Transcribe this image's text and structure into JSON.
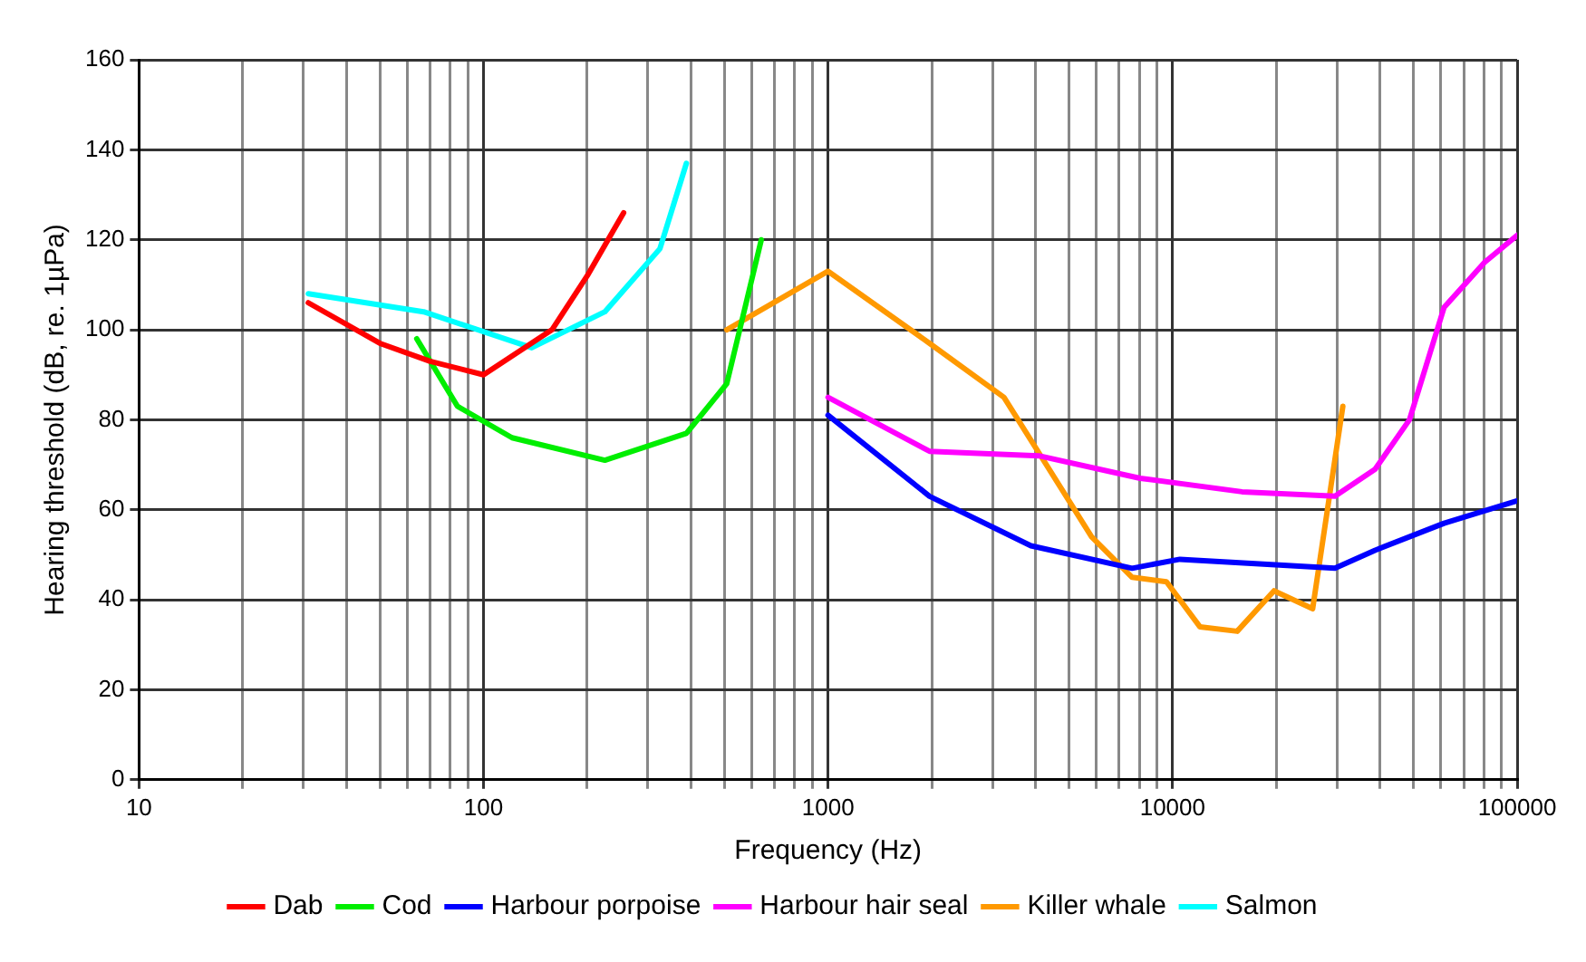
{
  "chart_data": {
    "type": "line",
    "xlabel": "Frequency (Hz)",
    "ylabel": "Hearing threshold (dB, re. 1µPa)",
    "log": "x",
    "xlim": [
      10,
      100000
    ],
    "ylim": [
      0,
      160
    ],
    "xticks": [
      10,
      {
        "value": 20,
        "label": null
      },
      {
        "value": 30,
        "label": null
      },
      {
        "value": 40,
        "label": null
      },
      {
        "value": 50,
        "label": null
      },
      {
        "value": 60,
        "label": null
      },
      {
        "value": 70,
        "label": null
      },
      {
        "value": 80,
        "label": null
      },
      {
        "value": 90,
        "label": null
      },
      100,
      {
        "value": 200,
        "label": null
      },
      {
        "value": 300,
        "label": null
      },
      {
        "value": 400,
        "label": null
      },
      {
        "value": 500,
        "label": null
      },
      {
        "value": 600,
        "label": null
      },
      {
        "value": 700,
        "label": null
      },
      {
        "value": 800,
        "label": null
      },
      {
        "value": 900,
        "label": null
      },
      1000,
      {
        "value": 2000,
        "label": null
      },
      {
        "value": 3000,
        "label": null
      },
      {
        "value": 4000,
        "label": null
      },
      {
        "value": 5000,
        "label": null
      },
      {
        "value": 6000,
        "label": null
      },
      {
        "value": 7000,
        "label": null
      },
      {
        "value": 8000,
        "label": null
      },
      {
        "value": 9000,
        "label": null
      },
      10000,
      {
        "value": 20000,
        "label": null
      },
      {
        "value": 30000,
        "label": null
      },
      {
        "value": 40000,
        "label": null
      },
      {
        "value": 50000,
        "label": null
      },
      {
        "value": 60000,
        "label": null
      },
      {
        "value": 70000,
        "label": null
      },
      {
        "value": 80000,
        "label": null
      },
      {
        "value": 90000,
        "label": null
      },
      100000
    ],
    "yticks": [
      0,
      20,
      40,
      60,
      80,
      100,
      120,
      140,
      160
    ],
    "grid": true,
    "legend": "bottom",
    "marker": "none",
    "line_style": "solid",
    "series": [
      {
        "name": "Dab",
        "color": "#ff0000",
        "x": [
          31,
          50,
          70,
          100,
          158,
          200,
          255
        ],
        "values": [
          106,
          97,
          93,
          90,
          100,
          112,
          126
        ]
      },
      {
        "name": "Cod",
        "color": "#00ee00",
        "x": [
          64,
          84,
          121,
          225,
          388,
          508,
          558,
          640
        ],
        "values": [
          98,
          83,
          76,
          71,
          77,
          88,
          101,
          120
        ]
      },
      {
        "name": "Harbour porpoise",
        "color": "#0000ff",
        "x": [
          1000,
          1970,
          3880,
          7630,
          10500,
          29600,
          38700,
          61400,
          100000
        ],
        "values": [
          81,
          63,
          52,
          47,
          49,
          47,
          51,
          57,
          62
        ]
      },
      {
        "name": "Harbour hair seal",
        "color": "#ff00ff",
        "x": [
          1000,
          1970,
          4090,
          8050,
          15900,
          29600,
          38700,
          48700,
          61400,
          80500,
          100000
        ],
        "values": [
          85,
          73,
          72,
          67,
          64,
          63,
          69,
          80,
          105,
          115,
          121
        ]
      },
      {
        "name": "Killer whale",
        "color": "#ff9900",
        "x": [
          508,
          1000,
          1970,
          3240,
          5820,
          7630,
          9600,
          12000,
          15400,
          19700,
          25500,
          31200
        ],
        "values": [
          100,
          113,
          97,
          85,
          54,
          45,
          44,
          34,
          33,
          42,
          38,
          83
        ]
      },
      {
        "name": "Salmon",
        "color": "#00ffff",
        "x": [
          31,
          67,
          138,
          225,
          325,
          388
        ],
        "values": [
          108,
          104,
          96,
          104,
          118,
          137
        ]
      }
    ]
  }
}
